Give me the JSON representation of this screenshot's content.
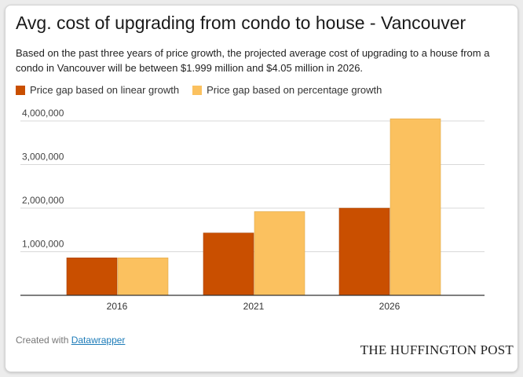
{
  "title": "Avg. cost of upgrading from condo to house - Vancouver",
  "description": "Based on the past three years of price growth, the projected average cost of upgrading to a house from a condo in Vancouver will be between $1.999 million and $4.05 million in 2026.",
  "footer": {
    "created_with": "Created with",
    "tool_link": "Datawrapper",
    "brand": "THE HUFFINGTON POST"
  },
  "colors": {
    "linear": "#c94f00",
    "percentage": "#fbc15f",
    "grid": "#d9d9d9",
    "axis": "#333333"
  },
  "chart_data": {
    "type": "bar",
    "categories": [
      "2016",
      "2021",
      "2026"
    ],
    "series": [
      {
        "name": "Price gap based on linear growth",
        "values": [
          860000,
          1430000,
          1999000
        ]
      },
      {
        "name": "Price gap based on percentage growth",
        "values": [
          860000,
          1920000,
          4050000
        ]
      }
    ],
    "ylim": [
      0,
      4000000
    ],
    "yticks": [
      1000000,
      2000000,
      3000000,
      4000000
    ],
    "ytick_labels": [
      "1,000,000",
      "2,000,000",
      "3,000,000",
      "4,000,000"
    ],
    "grid": true,
    "legend": "top-left"
  }
}
